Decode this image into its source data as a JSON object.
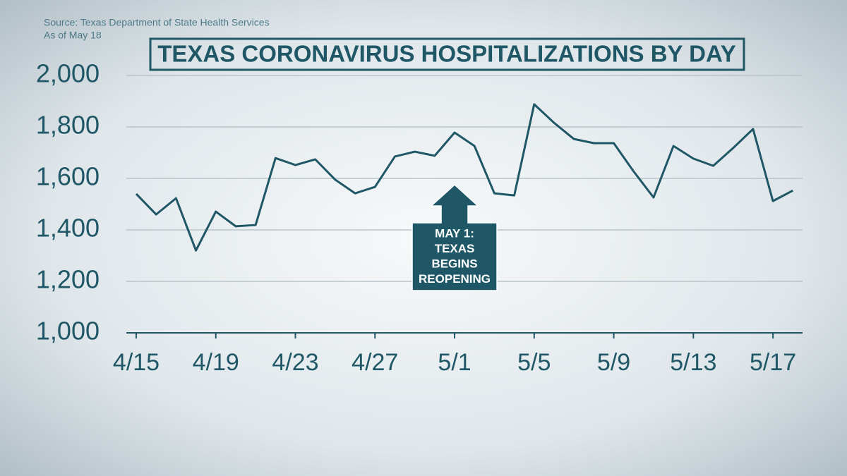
{
  "source": "Source: Texas Department of State Health Services",
  "as_of": "As of May 18",
  "chart_data": {
    "type": "line",
    "title": "TEXAS CORONAVIRUS HOSPITALIZATIONS BY DAY",
    "categories": [
      "4/15",
      null,
      null,
      null,
      "4/19",
      null,
      null,
      null,
      "4/23",
      null,
      null,
      null,
      "4/27",
      null,
      null,
      null,
      "5/1",
      null,
      null,
      null,
      "5/5",
      null,
      null,
      null,
      "5/9",
      null,
      null,
      null,
      "5/13",
      null,
      null,
      null,
      "5/17",
      null
    ],
    "values": [
      1540,
      1460,
      1523,
      1320,
      1471,
      1414,
      1419,
      1679,
      1652,
      1674,
      1595,
      1542,
      1567,
      1685,
      1704,
      1688,
      1778,
      1726,
      1542,
      1534,
      1888,
      1816,
      1753,
      1737,
      1737,
      1627,
      1526,
      1726,
      1677,
      1649,
      1718,
      1792,
      1512,
      1553
    ],
    "color": "#1f5766",
    "ylim": [
      1000,
      2000
    ],
    "yticks": [
      {
        "value": 1000,
        "label": "1,000"
      },
      {
        "value": 1200,
        "label": "1,200"
      },
      {
        "value": 1400,
        "label": "1,400"
      },
      {
        "value": 1600,
        "label": "1,600"
      },
      {
        "value": 1800,
        "label": "1,800"
      },
      {
        "value": 2000,
        "label": "2,000"
      }
    ],
    "grid": true,
    "annotation": {
      "category": "5/1",
      "lines": [
        "MAY 1:",
        "TEXAS",
        "BEGINS",
        "REOPENING"
      ]
    }
  }
}
